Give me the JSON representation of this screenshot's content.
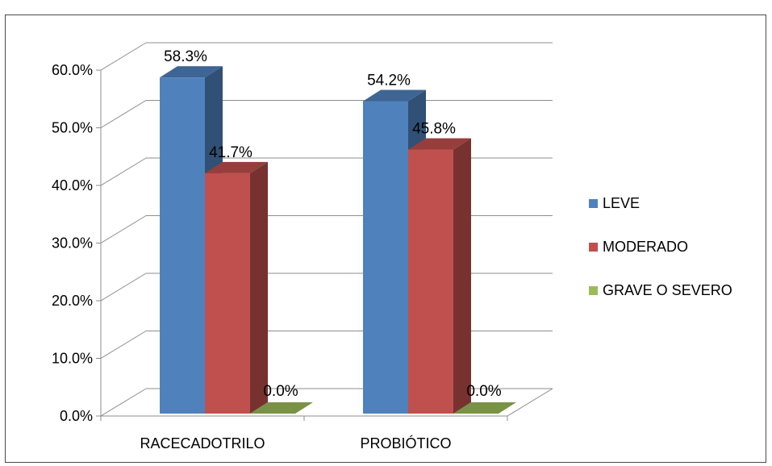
{
  "chart_data": {
    "type": "bar",
    "categories": [
      "RACECADOTRILO",
      "PROBIÓTICO"
    ],
    "series": [
      {
        "name": "LEVE",
        "values": [
          58.3,
          54.2
        ],
        "color": "#4F81BD"
      },
      {
        "name": "MODERADO",
        "values": [
          41.7,
          45.8
        ],
        "color": "#C0504D"
      },
      {
        "name": "GRAVE O SEVERO",
        "values": [
          0.0,
          0.0
        ],
        "color": "#9BBB59"
      }
    ],
    "data_labels": [
      [
        "58.3%",
        "54.2%"
      ],
      [
        "41.7%",
        "45.8%"
      ],
      [
        "0.0%",
        "0.0%"
      ]
    ],
    "y_ticks": [
      "0.0%",
      "10.0%",
      "20.0%",
      "30.0%",
      "40.0%",
      "50.0%",
      "60.0%"
    ],
    "ylim": [
      0,
      60
    ],
    "grid": true,
    "legend_position": "right",
    "style": "3d-clustered-column"
  }
}
